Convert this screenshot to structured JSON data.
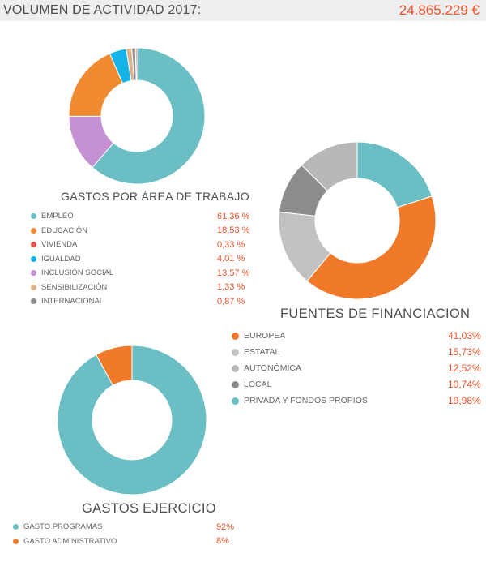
{
  "header": {
    "title": "VOLUMEN DE ACTIVIDAD 2017:",
    "total": "24.865.229 €"
  },
  "colors": {
    "accent": "#e8542a",
    "header_bg": "#eeeeee",
    "text": "#4d4d4d"
  },
  "chart_data": [
    {
      "type": "pie",
      "title": "GASTOS POR ÁREA DE TRABAJO",
      "labels": [
        "EMPLEO",
        "EDUCACIÓN",
        "VIVIENDA",
        "IGUALDAD",
        "INCLUSIÓN SOCIAL",
        "SENSIBILIZACIÓN",
        "INTERNACIONAL"
      ],
      "values": [
        61.36,
        18.53,
        0.33,
        4.01,
        13.57,
        1.33,
        0.87
      ],
      "value_labels": [
        "61,36 %",
        "18,53 %",
        "0,33 %",
        "4,01 %",
        "13,57 %",
        "1,33 %",
        "0,87 %"
      ],
      "colors": [
        "#6bbfc4",
        "#f08a30",
        "#e0554b",
        "#15b4e8",
        "#c491d3",
        "#dcb48a",
        "#8c8c8c"
      ],
      "slice_order": [
        0,
        4,
        1,
        3,
        5,
        6,
        2
      ]
    },
    {
      "type": "pie",
      "title": "FUENTES DE FINANCIACION",
      "labels": [
        "EUROPEA",
        "ESTATAL",
        "AUTONÓMICA",
        "LOCAL",
        "PRIVADA Y FONDOS PROPIOS"
      ],
      "values": [
        41.03,
        15.73,
        12.52,
        10.74,
        19.98
      ],
      "value_labels": [
        "41,03%",
        "15,73%",
        "12,52%",
        "10,74%",
        "19,98%"
      ],
      "colors": [
        "#f07a2a",
        "#c2c2c2",
        "#b8b8b8",
        "#8c8c8c",
        "#6bbfc4"
      ],
      "slice_order": [
        4,
        0,
        1,
        3,
        2
      ]
    },
    {
      "type": "pie",
      "title": "GASTOS EJERCICIO",
      "labels": [
        "GASTO PROGRAMAS",
        "GASTO ADMINISTRATIVO"
      ],
      "values": [
        92,
        8
      ],
      "value_labels": [
        "92%",
        "8%"
      ],
      "colors": [
        "#6bbfc4",
        "#f07a2a"
      ],
      "slice_order": [
        0,
        1
      ]
    }
  ]
}
